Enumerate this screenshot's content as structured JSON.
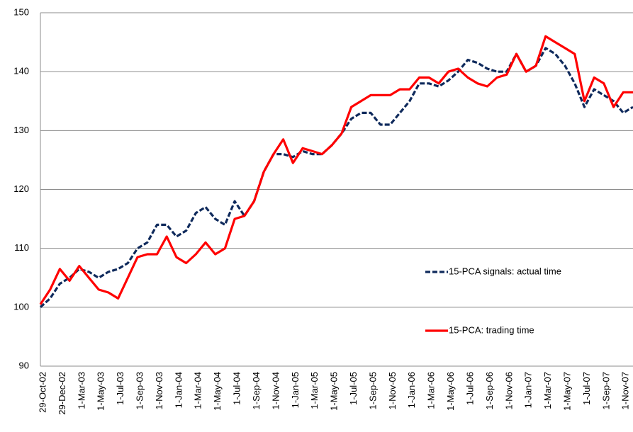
{
  "chart_data": {
    "type": "line",
    "x": [
      "29-Oct-02",
      null,
      "29-Dec-02",
      null,
      "1-Mar-03",
      null,
      "1-May-03",
      null,
      "1-Jul-03",
      null,
      "1-Sep-03",
      null,
      "1-Nov-03",
      null,
      "1-Jan-04",
      null,
      "1-Mar-04",
      null,
      "1-May-04",
      null,
      "1-Jul-04",
      null,
      "1-Sep-04",
      null,
      "1-Nov-04",
      null,
      "1-Jan-05",
      null,
      "1-Mar-05",
      null,
      "1-May-05",
      null,
      "1-Jul-05",
      null,
      "1-Sep-05",
      null,
      "1-Nov-05",
      null,
      "1-Jan-06",
      null,
      "1-Mar-06",
      null,
      "1-May-06",
      null,
      "1-Jul-06",
      null,
      "1-Sep-06",
      null,
      "1-Nov-06",
      null,
      "1-Jan-07",
      null,
      "1-Mar-07",
      null,
      "1-May-07",
      null,
      "1-Jul-07",
      null,
      "1-Sep-07",
      null,
      "1-Nov-07",
      null
    ],
    "series": [
      {
        "name": "15-PCA signals: actual time",
        "color": "#0f2a5c",
        "dashed": true,
        "values": [
          100,
          101.5,
          104,
          105,
          106.5,
          106,
          105,
          106,
          106.5,
          107.5,
          110,
          111,
          114,
          114,
          112,
          113,
          116,
          117,
          115,
          114,
          118,
          115.5,
          118,
          123,
          126,
          126,
          125.5,
          126.5,
          126,
          126,
          127.5,
          129.5,
          132,
          133,
          133,
          131,
          131,
          133,
          135,
          138,
          138,
          137.5,
          138.5,
          140,
          142,
          141.5,
          140.5,
          140,
          140,
          143,
          140,
          141,
          144,
          143,
          141,
          138,
          134,
          137,
          136,
          135,
          133,
          134
        ]
      },
      {
        "name": "15-PCA: trading time",
        "color": "#ff0000",
        "dashed": false,
        "values": [
          100.5,
          103,
          106.5,
          104.5,
          107,
          105,
          103,
          102.5,
          101.5,
          105,
          108.5,
          109,
          109,
          112,
          108.5,
          107.5,
          109,
          111,
          109,
          110,
          115,
          115.5,
          118,
          123,
          126,
          128.5,
          124.5,
          127,
          126.5,
          126,
          127.5,
          129.5,
          134,
          135,
          136,
          136,
          136,
          137,
          137,
          139,
          139,
          138,
          140,
          140.5,
          139,
          138,
          137.5,
          139,
          139.5,
          143,
          140,
          141,
          146,
          145,
          144,
          143,
          135,
          139,
          138,
          134,
          136.5,
          136.5
        ]
      }
    ],
    "ylim": [
      90,
      150
    ],
    "yticks": [
      90,
      100,
      110,
      120,
      130,
      140,
      150
    ],
    "grid": true,
    "legend": "right"
  }
}
